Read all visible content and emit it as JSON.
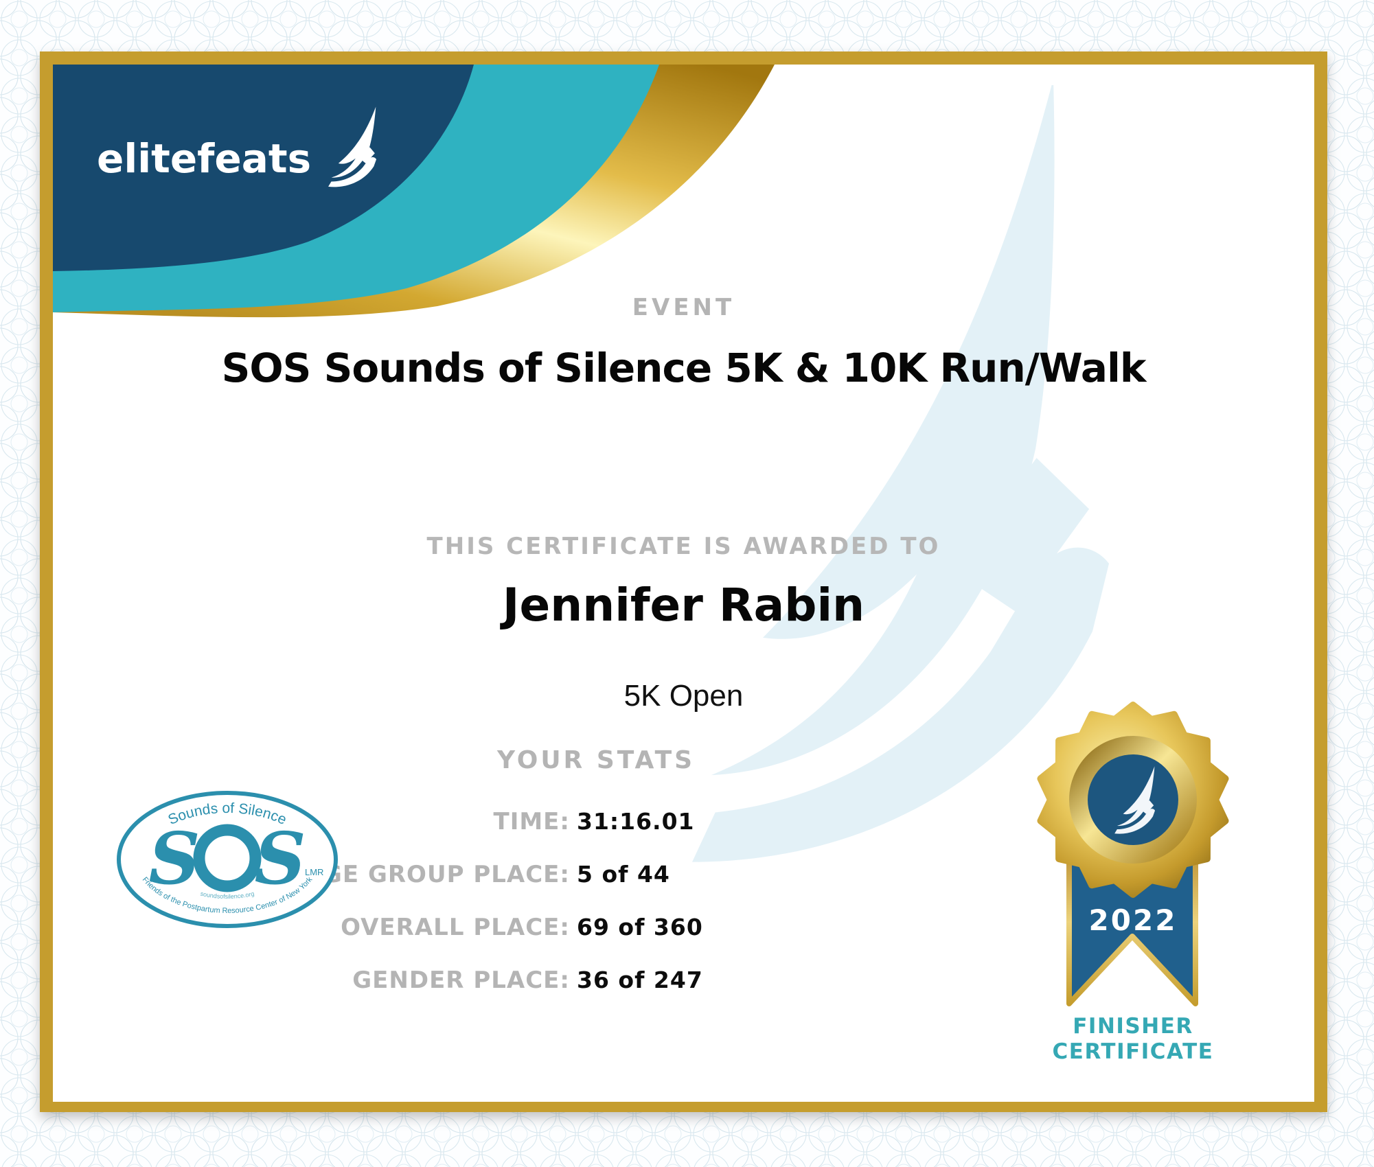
{
  "certificate": {
    "brand": {
      "logo_text": "elitefeats"
    },
    "event": {
      "label": "EVENT",
      "title": "SOS Sounds of Silence 5K & 10K Run/Walk"
    },
    "award": {
      "label": "THIS CERTIFICATE IS AWARDED TO",
      "recipient": "Jennifer Rabin",
      "division": "5K Open"
    },
    "stats": {
      "heading": "YOUR STATS",
      "rows": [
        {
          "label": "TIME:",
          "value": "31:16.01"
        },
        {
          "label": "AGE GROUP PLACE:",
          "value": "5 of 44"
        },
        {
          "label": "OVERALL PLACE:",
          "value": "69 of 360"
        },
        {
          "label": "GENDER PLACE:",
          "value": "36 of 247"
        }
      ]
    },
    "badge": {
      "year": "2022",
      "caption_line1": "FINISHER",
      "caption_line2": "CERTIFICATE"
    },
    "sos_logo": {
      "top_text": "Sounds of Silence",
      "letters": "S",
      "letters2": "S",
      "small_text": "LMR",
      "bottom_text": "Friends of the Postpartum Resource Center of New York",
      "url_text": "soundsofsilence.org"
    },
    "colors": {
      "navy": "#17496e",
      "teal": "#2fb2c1",
      "frame_gold": "#c59d2e",
      "watermark_blue": "#e3f1f7",
      "gray_text": "#b4b4b4",
      "finisher_teal": "#35a8b4",
      "sos_teal": "#2b8fad",
      "ribbon_navy": "#20608d",
      "medal_navy": "#1d567f"
    }
  }
}
